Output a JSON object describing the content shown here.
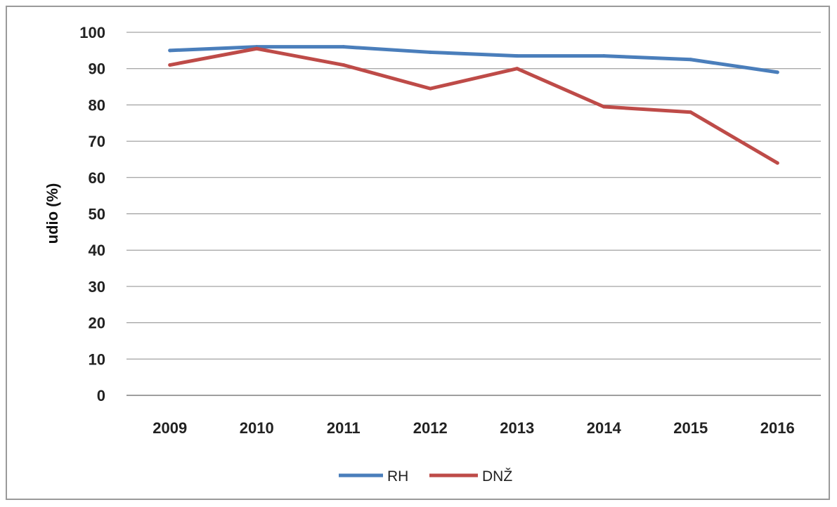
{
  "chart_data": {
    "type": "line",
    "title": "",
    "xlabel": "",
    "ylabel": "udio (%)",
    "categories": [
      "2009",
      "2010",
      "2011",
      "2012",
      "2013",
      "2014",
      "2015",
      "2016"
    ],
    "ylim": [
      0,
      100
    ],
    "yticks": [
      0,
      10,
      20,
      30,
      40,
      50,
      60,
      70,
      80,
      90,
      100
    ],
    "grid": true,
    "legend_position": "bottom",
    "series": [
      {
        "name": "RH",
        "color": "#4a7ebb",
        "values": [
          95,
          96,
          96,
          94.5,
          93.5,
          93.5,
          92.5,
          89
        ]
      },
      {
        "name": "DNŽ",
        "color": "#be4b48",
        "values": [
          91,
          95.5,
          91,
          84.5,
          90,
          79.5,
          78,
          64
        ]
      }
    ]
  }
}
